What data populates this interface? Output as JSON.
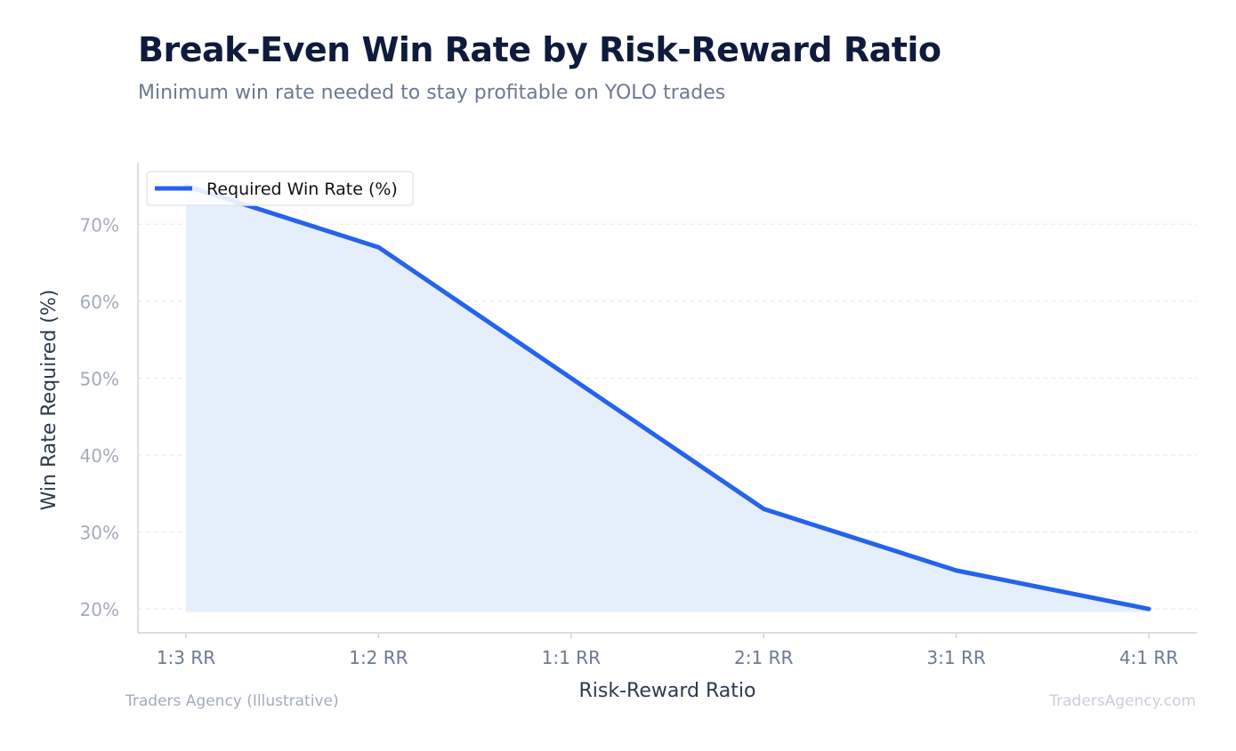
{
  "header": {
    "title": "Break-Even Win Rate by Risk-Reward Ratio",
    "subtitle": "Minimum win rate needed to stay profitable on YOLO trades"
  },
  "footer": {
    "source": "Traders Agency (Illustrative)",
    "watermark": "TradersAgency.com"
  },
  "colors": {
    "line": "#2563eb",
    "fill": "#e5eefb",
    "grid": "#e3e8ef",
    "axis": "#cbd3de",
    "tick_label": "#a3acba",
    "category_label": "#6b7a90",
    "axis_title": "#2d3a4e"
  },
  "chart_data": {
    "type": "area",
    "title": "Break-Even Win Rate by Risk-Reward Ratio",
    "subtitle": "Minimum win rate needed to stay profitable on YOLO trades",
    "categories": [
      "1:3 RR",
      "1:2 RR",
      "1:1 RR",
      "2:1 RR",
      "3:1 RR",
      "4:1 RR"
    ],
    "series": [
      {
        "name": "Required Win Rate (%)",
        "values": [
          75,
          67,
          50,
          33,
          25,
          20
        ]
      }
    ],
    "xlabel": "Risk-Reward Ratio",
    "ylabel": "Win Rate Required (%)",
    "ylim": [
      16.9,
      78.0
    ],
    "yticks": [
      20,
      30,
      40,
      50,
      60,
      70
    ],
    "ytick_labels": [
      "20%",
      "30%",
      "40%",
      "50%",
      "60%",
      "70%"
    ],
    "fill_baseline": 19.6,
    "grid": true,
    "legend": "top-left"
  }
}
